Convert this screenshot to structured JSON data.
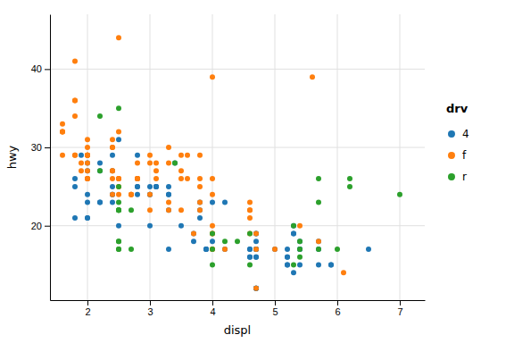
{
  "chart_data": {
    "type": "scatter",
    "xlabel": "displ",
    "ylabel": "hwy",
    "legend_title": "drv",
    "xlim": [
      1.4,
      7.4
    ],
    "ylim": [
      10.5,
      47
    ],
    "xticks": [
      2,
      3,
      4,
      5,
      6,
      7
    ],
    "yticks": [
      20,
      30,
      40
    ],
    "grid": true,
    "legend": "right",
    "series": [
      {
        "name": "4",
        "x": [
          1.8,
          1.8,
          2.0,
          2.0,
          2.8,
          2.8,
          3.1,
          3.1,
          2.8,
          3.1,
          4.2,
          5.3,
          5.3,
          5.3,
          5.7,
          6.5,
          3.3,
          3.3,
          3.3,
          3.3,
          3.8,
          3.8,
          3.8,
          4.0,
          3.7,
          3.7,
          3.9,
          3.9,
          4.7,
          4.7,
          4.7,
          5.2,
          5.2,
          3.9,
          4.7,
          4.7,
          4.7,
          5.2,
          5.7,
          5.9,
          4.7,
          4.7,
          4.7,
          4.7,
          4.7,
          4.7,
          5.2,
          5.2,
          5.7,
          5.9,
          4.6,
          5.4,
          5.4,
          4.2,
          4.6,
          4.6,
          4.6,
          5.4,
          5.4,
          5.0,
          2.4,
          2.4,
          2.5,
          5.3,
          2.5,
          3.4,
          4.0,
          4.7,
          2.2,
          2.2,
          2.4,
          2.4,
          3.0,
          3.0,
          3.5,
          2.2,
          2.2,
          2.4,
          2.4,
          3.0,
          3.0,
          3.3,
          1.8,
          2.0,
          2.0,
          2.0,
          2.8,
          1.9,
          2.0
        ],
        "values": [
          26,
          25,
          28,
          27,
          25,
          25,
          25,
          25,
          24,
          25,
          23,
          20,
          19,
          14,
          15,
          17,
          22,
          24,
          24,
          17,
          22,
          21,
          23,
          23,
          19,
          18,
          17,
          17,
          19,
          19,
          12,
          17,
          15,
          17,
          17,
          12,
          17,
          16,
          18,
          15,
          16,
          12,
          17,
          17,
          16,
          12,
          15,
          16,
          17,
          15,
          17,
          17,
          18,
          17,
          16,
          16,
          17,
          15,
          17,
          17,
          29,
          27,
          31,
          19,
          20,
          28,
          18,
          18,
          27,
          28,
          25,
          23,
          24,
          20,
          20,
          23,
          23,
          24,
          24,
          24,
          25,
          25,
          21,
          21,
          21,
          24,
          29,
          29,
          23
        ]
      },
      {
        "name": "f",
        "x": [
          1.8,
          1.8,
          2.0,
          2.0,
          2.8,
          2.8,
          3.1,
          2.4,
          2.4,
          3.1,
          3.5,
          3.6,
          2.4,
          3.0,
          3.3,
          4.0,
          4.0,
          4.0,
          4.0,
          4.6,
          5.0,
          4.2,
          3.8,
          3.8,
          4.0,
          4.0,
          4.6,
          4.6,
          4.6,
          4.6,
          5.4,
          1.6,
          1.6,
          1.6,
          1.6,
          1.6,
          1.8,
          1.8,
          1.8,
          2.0,
          2.4,
          2.4,
          2.4,
          2.4,
          2.5,
          2.5,
          3.3,
          2.0,
          2.0,
          2.0,
          2.0,
          2.7,
          2.7,
          2.7,
          3.0,
          3.7,
          4.0,
          4.7,
          4.7,
          4.7,
          5.7,
          6.1,
          2.5,
          3.5,
          3.5,
          3.0,
          3.0,
          3.5,
          3.3,
          3.3,
          4.0,
          5.6,
          3.1,
          3.8,
          3.8,
          3.8,
          2.0,
          2.0,
          2.0,
          2.5,
          2.5,
          2.8,
          2.8,
          1.9,
          1.9,
          2.0,
          2.0,
          2.5,
          2.5,
          1.8,
          2.0,
          2.8,
          2.8,
          3.6
        ],
        "values": [
          29,
          29,
          31,
          30,
          26,
          26,
          27,
          27,
          30,
          26,
          29,
          26,
          24,
          24,
          22,
          17,
          19,
          17,
          19,
          19,
          17,
          17,
          26,
          25,
          26,
          24,
          21,
          22,
          23,
          22,
          20,
          33,
          32,
          32,
          29,
          32,
          34,
          36,
          36,
          29,
          26,
          27,
          30,
          31,
          26,
          26,
          28,
          26,
          29,
          28,
          27,
          24,
          24,
          24,
          22,
          19,
          20,
          17,
          12,
          19,
          18,
          14,
          32,
          27,
          26,
          29,
          28,
          22,
          23,
          30,
          39,
          39,
          28,
          29,
          23,
          22,
          26,
          26,
          26,
          26,
          25,
          26,
          26,
          27,
          28,
          29,
          29,
          24,
          44,
          41,
          29,
          26,
          28,
          29
        ]
      },
      {
        "name": "r",
        "x": [
          5.3,
          5.3,
          5.7,
          6.0,
          5.7,
          5.7,
          6.2,
          6.2,
          7.0,
          4.0,
          4.2,
          4.4,
          4.6,
          5.4,
          5.4,
          5.4,
          4.0,
          4.0,
          4.6,
          2.5,
          2.5,
          2.5,
          2.5,
          2.5,
          2.2,
          2.2,
          2.5,
          2.5,
          2.5,
          2.5,
          2.5,
          2.5,
          2.7,
          2.7,
          3.4
        ],
        "values": [
          20,
          15,
          17,
          17,
          26,
          23,
          26,
          25,
          24,
          15,
          18,
          18,
          15,
          17,
          16,
          18,
          17,
          19,
          19,
          17,
          18,
          17,
          18,
          23,
          27,
          34,
          25,
          22,
          35,
          22,
          22,
          22,
          22,
          17,
          28
        ]
      }
    ]
  }
}
